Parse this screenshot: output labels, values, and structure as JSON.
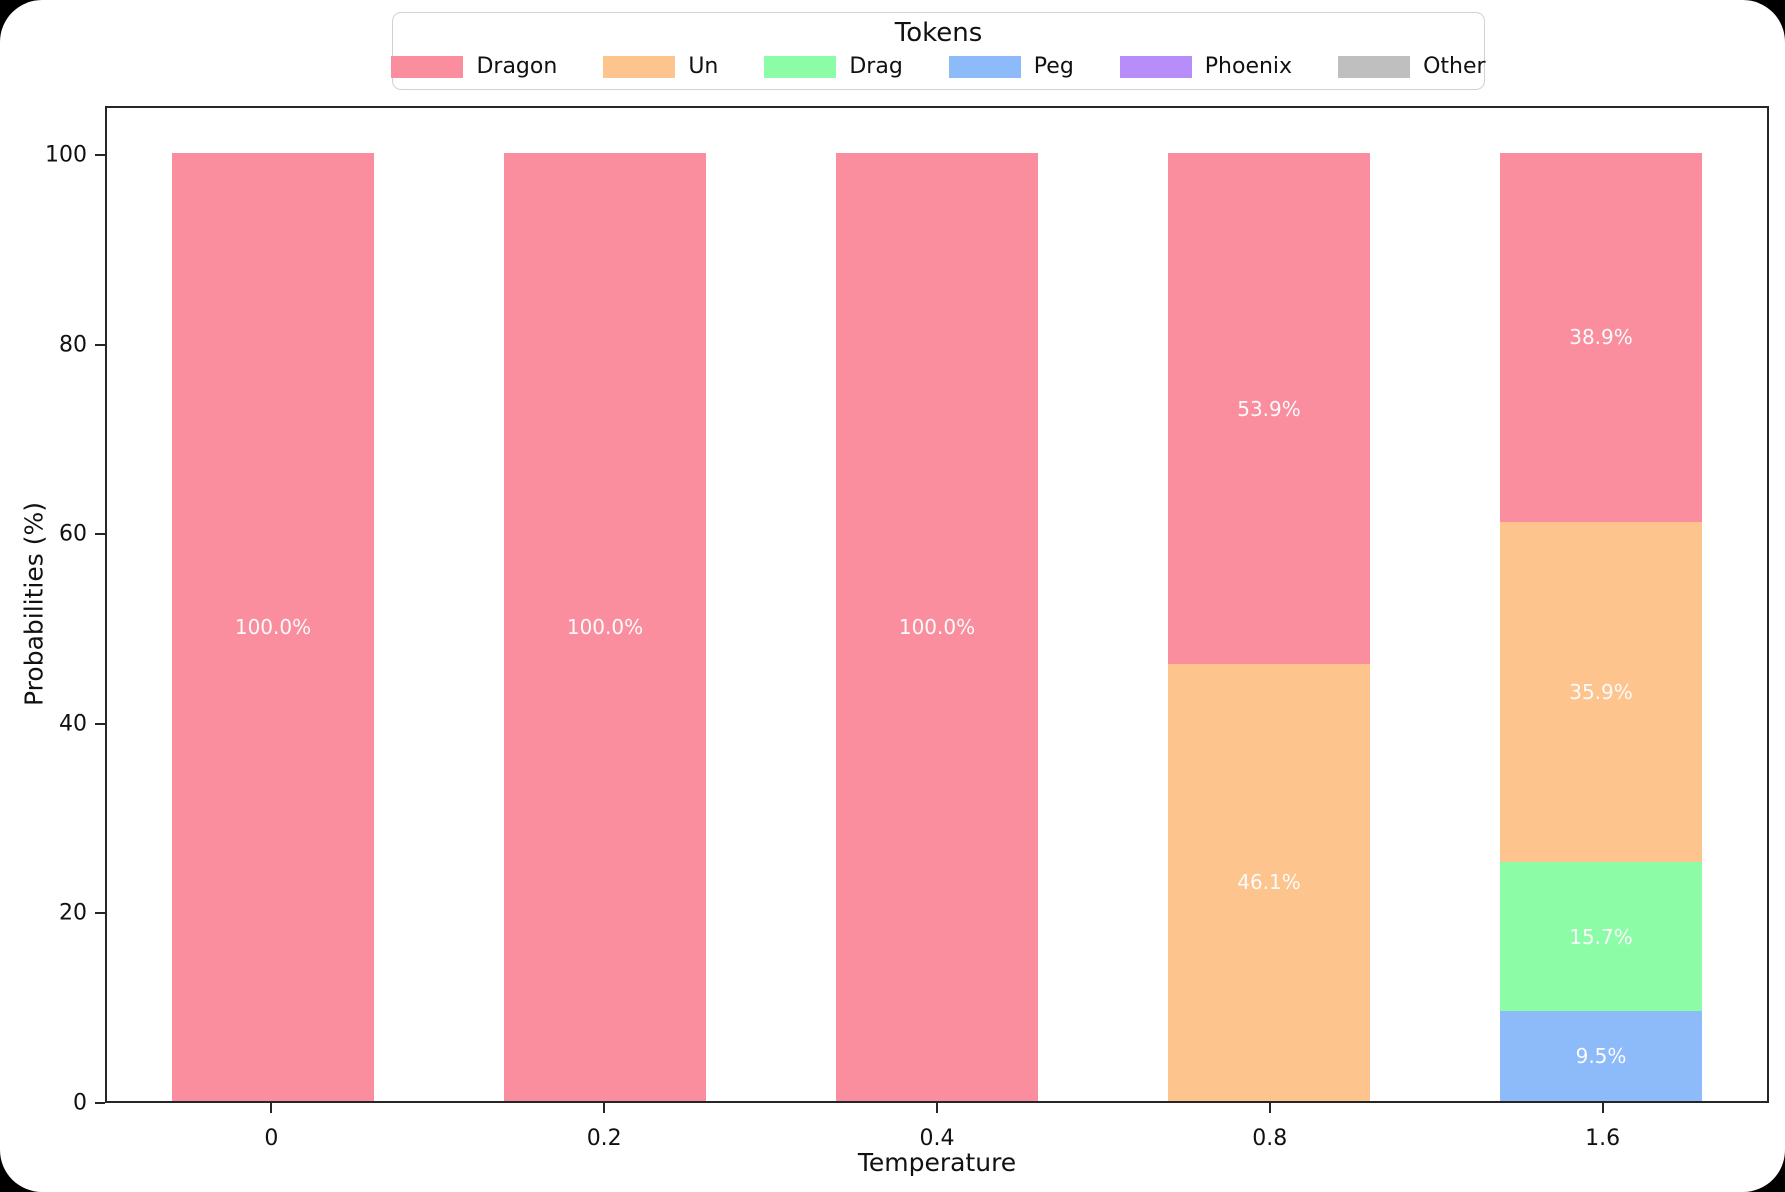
{
  "legend": {
    "title": "Tokens",
    "entries": [
      {
        "label": "Dragon",
        "color": "#FA8D9E"
      },
      {
        "label": "Un",
        "color": "#FDC48E"
      },
      {
        "label": "Drag",
        "color": "#8DFCA7"
      },
      {
        "label": "Peg",
        "color": "#8DBBF9"
      },
      {
        "label": "Phoenix",
        "color": "#B68DF9"
      },
      {
        "label": "Other",
        "color": "#BFBFBF"
      }
    ]
  },
  "chart_data": {
    "type": "bar",
    "stacked": true,
    "title": "Tokens",
    "xlabel": "Temperature",
    "ylabel": "Probabilities (%)",
    "ylim": [
      0,
      105
    ],
    "yticks": [
      0,
      20,
      40,
      60,
      80,
      100
    ],
    "grid": false,
    "legend_position": "top-center",
    "categories": [
      "0",
      "0.2",
      "0.4",
      "0.8",
      "1.6"
    ],
    "colors": {
      "Dragon": "#FA8D9E",
      "Un": "#FDC48E",
      "Drag": "#8DFCA7",
      "Peg": "#8DBBF9",
      "Phoenix": "#B68DF9",
      "Other": "#BFBFBF"
    },
    "series": [
      {
        "name": "Dragon",
        "values": [
          100.0,
          100.0,
          100.0,
          53.9,
          38.9
        ]
      },
      {
        "name": "Un",
        "values": [
          0,
          0,
          0,
          46.1,
          35.9
        ]
      },
      {
        "name": "Drag",
        "values": [
          0,
          0,
          0,
          0,
          15.7
        ]
      },
      {
        "name": "Peg",
        "values": [
          0,
          0,
          0,
          0,
          9.5
        ]
      },
      {
        "name": "Phoenix",
        "values": [
          0,
          0,
          0,
          0,
          0
        ]
      },
      {
        "name": "Other",
        "values": [
          0,
          0,
          0,
          0,
          0
        ]
      }
    ],
    "bars": [
      {
        "category": "0",
        "segments": [
          {
            "token": "Dragon",
            "value": 100.0,
            "label": "100.0%"
          }
        ]
      },
      {
        "category": "0.2",
        "segments": [
          {
            "token": "Dragon",
            "value": 100.0,
            "label": "100.0%"
          }
        ]
      },
      {
        "category": "0.4",
        "segments": [
          {
            "token": "Dragon",
            "value": 100.0,
            "label": "100.0%"
          }
        ]
      },
      {
        "category": "0.8",
        "segments": [
          {
            "token": "Un",
            "value": 46.1,
            "label": "46.1%"
          },
          {
            "token": "Dragon",
            "value": 53.9,
            "label": "53.9%"
          }
        ]
      },
      {
        "category": "1.6",
        "segments": [
          {
            "token": "Peg",
            "value": 9.5,
            "label": "9.5%"
          },
          {
            "token": "Drag",
            "value": 15.7,
            "label": "15.7%"
          },
          {
            "token": "Un",
            "value": 35.9,
            "label": "35.9%"
          },
          {
            "token": "Dragon",
            "value": 38.9,
            "label": "38.9%"
          }
        ]
      }
    ]
  }
}
